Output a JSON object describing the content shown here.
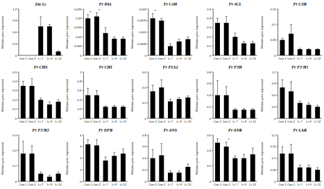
{
  "chart_data": [
    {
      "type": "bar",
      "title": "Zm Lc",
      "y_label": "Relative gene expression",
      "categories": [
        "Con 1",
        "Con 2",
        "Lr 7",
        "Lr 9",
        "Lr 12"
      ],
      "values": [
        0,
        0,
        0.75,
        0.75,
        0.1
      ],
      "errors": [
        0,
        0,
        0.25,
        0.05,
        0.02
      ],
      "significance": [
        null,
        null,
        null,
        null,
        null
      ],
      "color": "#000000",
      "ylim": [
        0,
        1.2
      ],
      "yticks": [
        0,
        0.3,
        0.6,
        0.9,
        1.2
      ]
    },
    {
      "type": "bar",
      "title": "Fr PAL",
      "y_label": "Relative gene expression",
      "categories": [
        "Con 1",
        "Con 2",
        "Lr 7",
        "Lr 9",
        "Lr 12"
      ],
      "values": [
        0.02,
        0.021,
        0.012,
        0.009,
        0.009
      ],
      "errors": [
        0.002,
        0.002,
        0.003,
        0.001,
        0.001
      ],
      "significance": [
        "*",
        "*",
        null,
        null,
        null
      ],
      "color": "#000000",
      "ylim": [
        0,
        0.025
      ],
      "yticks": [
        0,
        0.005,
        0.01,
        0.015,
        0.02,
        0.025
      ]
    },
    {
      "type": "bar",
      "title": "Fr C4H",
      "y_label": "Relative gene expression",
      "categories": [
        "Con 1",
        "Con 2",
        "Lr 7",
        "Lr 9",
        "Lr 12"
      ],
      "values": [
        0.0016,
        0.0015,
        0.0004,
        0.0006,
        0.0007
      ],
      "errors": [
        0.0002,
        0.0001,
        0.0001,
        0.0001,
        0.0001
      ],
      "significance": [
        "*",
        null,
        null,
        null,
        null
      ],
      "color": "#000000",
      "ylim": [
        0,
        0.002
      ],
      "yticks": [
        0,
        0.0005,
        0.001,
        0.0015,
        0.002
      ]
    },
    {
      "type": "bar",
      "title": "Fr 4CL",
      "y_label": "Relative gene expression",
      "categories": [
        "Con 1",
        "Con 2",
        "Lr 7",
        "Lr 9",
        "Lr 12"
      ],
      "values": [
        0.35,
        0.35,
        0.2,
        0.13,
        0.13
      ],
      "errors": [
        0.05,
        0.07,
        0.04,
        0.02,
        0.02
      ],
      "significance": [
        null,
        null,
        null,
        null,
        null
      ],
      "color": "#000000",
      "ylim": [
        0,
        0.5
      ],
      "yticks": [
        0,
        0.1,
        0.2,
        0.3,
        0.4,
        0.5
      ]
    },
    {
      "type": "bar",
      "title": "Fr C3H",
      "y_label": "Relative gene expression",
      "categories": [
        "Con 1",
        "Con 2",
        "Lr 7",
        "Lr 9",
        "Lr 12"
      ],
      "values": [
        0.05,
        0.07,
        0.02,
        0.02,
        0.02
      ],
      "errors": [
        0.005,
        0.03,
        0.003,
        0.002,
        0.002
      ],
      "significance": [
        null,
        null,
        null,
        null,
        null
      ],
      "color": "#000000",
      "ylim": [
        0,
        0.15
      ],
      "yticks": [
        0,
        0.05,
        0.1,
        0.15
      ]
    },
    {
      "type": "bar",
      "title": "Fr CHS",
      "y_label": "Relative gene expression",
      "categories": [
        "Con 1",
        "Con 2",
        "Lr 7",
        "Lr 9",
        "Lr 12"
      ],
      "values": [
        0.35,
        0.35,
        0.2,
        0.15,
        0.18
      ],
      "errors": [
        0.05,
        0.08,
        0.02,
        0.03,
        0.02
      ],
      "significance": [
        null,
        null,
        null,
        null,
        null
      ],
      "color": "#000000",
      "ylim": [
        0,
        0.5
      ],
      "yticks": [
        0,
        0.1,
        0.2,
        0.3,
        0.4,
        0.5
      ]
    },
    {
      "type": "bar",
      "title": "Fr CHI",
      "y_label": "Relative gene expression",
      "categories": [
        "Con 1",
        "Con 2",
        "Lr 7",
        "Lr 9",
        "Lr 12"
      ],
      "values": [
        0.5,
        0.5,
        0.25,
        0.25,
        0.25
      ],
      "errors": [
        0.15,
        0.1,
        0.02,
        0.03,
        0.02
      ],
      "significance": [
        null,
        null,
        null,
        null,
        null
      ],
      "color": "#000000",
      "ylim": [
        0,
        1
      ],
      "yticks": [
        0,
        0.2,
        0.4,
        0.6,
        0.8,
        1
      ]
    },
    {
      "type": "bar",
      "title": "Fr FLS2",
      "y_label": "Relative gene expression",
      "categories": [
        "Con 1",
        "Con 2",
        "Lr 7",
        "Lr 9",
        "Lr 12"
      ],
      "values": [
        0.35,
        0.4,
        0.22,
        0.25,
        0.27
      ],
      "errors": [
        0.08,
        0.1,
        0.03,
        0.02,
        0.02
      ],
      "significance": [
        null,
        null,
        null,
        null,
        null
      ],
      "color": "#000000",
      "ylim": [
        0,
        0.6
      ],
      "yticks": [
        0,
        0.2,
        0.4,
        0.6
      ]
    },
    {
      "type": "bar",
      "title": "Fr F3H",
      "y_label": "Relative gene expression",
      "categories": [
        "Con 1",
        "Con 2",
        "Lr 7",
        "Lr 9",
        "Lr 12"
      ],
      "values": [
        0.4,
        0.4,
        0.15,
        0.15,
        0.15
      ],
      "errors": [
        0.25,
        0.15,
        0.02,
        0.02,
        0.02
      ],
      "significance": [
        null,
        null,
        null,
        null,
        null
      ],
      "color": "#000000",
      "ylim": [
        0,
        0.8
      ],
      "yticks": [
        0,
        0.2,
        0.4,
        0.6,
        0.8
      ]
    },
    {
      "type": "bar",
      "title": "Fr F3'H1",
      "y_label": "Relative gene expression",
      "categories": [
        "Con 1",
        "Con 2",
        "Lr 7",
        "Lr 9",
        "Lr 12"
      ],
      "values": [
        0.8,
        0.7,
        0.4,
        0.35,
        0.3
      ],
      "errors": [
        0.2,
        0.25,
        0.05,
        0.05,
        0.04
      ],
      "significance": [
        null,
        null,
        null,
        null,
        null
      ],
      "color": "#000000",
      "ylim": [
        0,
        1.2
      ],
      "yticks": [
        0,
        0.3,
        0.6,
        0.9,
        1.2
      ]
    },
    {
      "type": "bar",
      "title": "Fr F3'H2",
      "y_label": "Relative gene expression",
      "categories": [
        "Con 1",
        "Con 2",
        "Lr 7",
        "Lr 9",
        "Lr 12"
      ],
      "values": [
        0.18,
        0.18,
        0.05,
        0.03,
        0.05
      ],
      "errors": [
        0.08,
        0.05,
        0.01,
        0.01,
        0.01
      ],
      "significance": [
        null,
        null,
        null,
        null,
        null
      ],
      "color": "#000000",
      "ylim": [
        0,
        0.3
      ],
      "yticks": [
        0,
        0.1,
        0.2,
        0.3
      ]
    },
    {
      "type": "bar",
      "title": "Fr DFR",
      "y_label": "Relative gene expression",
      "categories": [
        "Con 1",
        "Con 2",
        "Lr 7",
        "Lr 9",
        "Lr 12"
      ],
      "values": [
        3.2,
        3.1,
        1.8,
        2.2,
        2.4
      ],
      "errors": [
        0.4,
        0.5,
        0.3,
        0.3,
        0.4
      ],
      "significance": [
        null,
        null,
        null,
        null,
        null
      ],
      "color": "#000000",
      "ylim": [
        0,
        4
      ],
      "yticks": [
        0,
        1,
        2,
        3,
        4
      ]
    },
    {
      "type": "bar",
      "title": "Fr ANS",
      "y_label": "Relative gene expression",
      "categories": [
        "Con 1",
        "Con 2",
        "Lr 7",
        "Lr 9",
        "Lr 12"
      ],
      "values": [
        0.4,
        0.45,
        0.15,
        0.15,
        0.25
      ],
      "errors": [
        0.15,
        0.2,
        0.03,
        0.03,
        0.05
      ],
      "significance": [
        null,
        null,
        null,
        null,
        null
      ],
      "color": "#000000",
      "ylim": [
        0,
        0.8
      ],
      "yticks": [
        0,
        0.2,
        0.4,
        0.6,
        0.8
      ]
    },
    {
      "type": "bar",
      "title": "Fr ANR",
      "y_label": "Relative gene expression",
      "categories": [
        "Con 1",
        "Con 2",
        "Lr 7",
        "Lr 9",
        "Lr 12"
      ],
      "values": [
        0.5,
        0.45,
        0.3,
        0.3,
        0.35
      ],
      "errors": [
        0.05,
        0.06,
        0.03,
        0.05,
        0.08
      ],
      "significance": [
        null,
        "*",
        null,
        null,
        null
      ],
      "color": "#000000",
      "ylim": [
        0,
        0.6
      ],
      "yticks": [
        0,
        0.2,
        0.4,
        0.6
      ]
    },
    {
      "type": "bar",
      "title": "Fr LAR",
      "y_label": "Relative gene expression",
      "categories": [
        "Con 1",
        "Con 2",
        "Lr 7",
        "Lr 9",
        "Lr 12"
      ],
      "values": [
        0.12,
        0.12,
        0.06,
        0.06,
        0.05
      ],
      "errors": [
        0.03,
        0.04,
        0.01,
        0.01,
        0.01
      ],
      "significance": [
        null,
        null,
        null,
        null,
        null
      ],
      "color": "#000000",
      "ylim": [
        0,
        0.2
      ],
      "yticks": [
        0,
        0.05,
        0.1,
        0.15,
        0.2
      ]
    }
  ]
}
